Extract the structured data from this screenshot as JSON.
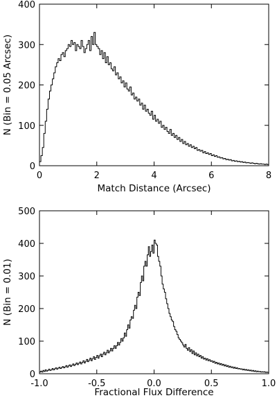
{
  "chart_data": [
    {
      "type": "step-histogram",
      "xlabel": "Match Distance (Arcsec)",
      "ylabel": "N (Bin = 0.05 Arcsec)",
      "xlim": [
        0,
        8
      ],
      "ylim": [
        0,
        400
      ],
      "xticks": [
        0,
        2,
        4,
        6,
        8
      ],
      "yticks": [
        0,
        100,
        200,
        300,
        400
      ],
      "bin_width": 0.05,
      "x": [
        0.0,
        0.05,
        0.1,
        0.15,
        0.2,
        0.25,
        0.3,
        0.35,
        0.4,
        0.45,
        0.5,
        0.55,
        0.6,
        0.65,
        0.7,
        0.75,
        0.8,
        0.85,
        0.9,
        0.95,
        1.0,
        1.05,
        1.1,
        1.15,
        1.2,
        1.25,
        1.3,
        1.35,
        1.4,
        1.45,
        1.5,
        1.55,
        1.6,
        1.65,
        1.7,
        1.75,
        1.8,
        1.85,
        1.9,
        1.95,
        2.0,
        2.05,
        2.1,
        2.15,
        2.2,
        2.25,
        2.3,
        2.35,
        2.4,
        2.45,
        2.5,
        2.55,
        2.6,
        2.65,
        2.7,
        2.75,
        2.8,
        2.85,
        2.9,
        2.95,
        3.0,
        3.05,
        3.1,
        3.15,
        3.2,
        3.25,
        3.3,
        3.35,
        3.4,
        3.45,
        3.5,
        3.55,
        3.6,
        3.65,
        3.7,
        3.75,
        3.8,
        3.85,
        3.9,
        3.95,
        4.0,
        4.05,
        4.1,
        4.15,
        4.2,
        4.25,
        4.3,
        4.35,
        4.4,
        4.45,
        4.5,
        4.55,
        4.6,
        4.65,
        4.7,
        4.75,
        4.8,
        4.85,
        4.9,
        4.95,
        5.0,
        5.05,
        5.1,
        5.15,
        5.2,
        5.25,
        5.3,
        5.35,
        5.4,
        5.45,
        5.5,
        5.55,
        5.6,
        5.65,
        5.7,
        5.75,
        5.8,
        5.85,
        5.9,
        5.95,
        6.0,
        6.05,
        6.1,
        6.15,
        6.2,
        6.25,
        6.3,
        6.35,
        6.4,
        6.45,
        6.5,
        6.55,
        6.6,
        6.65,
        6.7,
        6.75,
        6.8,
        6.85,
        6.9,
        6.95,
        7.0,
        7.05,
        7.1,
        7.15,
        7.2,
        7.25,
        7.3,
        7.35,
        7.4,
        7.45,
        7.5,
        7.55,
        7.6,
        7.65,
        7.7,
        7.75,
        7.8,
        7.85,
        7.9,
        7.95
      ],
      "values": [
        10,
        25,
        45,
        80,
        110,
        140,
        165,
        185,
        200,
        215,
        230,
        245,
        255,
        265,
        260,
        275,
        280,
        270,
        285,
        290,
        300,
        295,
        310,
        300,
        305,
        285,
        300,
        295,
        290,
        310,
        295,
        280,
        290,
        300,
        310,
        285,
        320,
        300,
        330,
        300,
        295,
        290,
        275,
        285,
        265,
        280,
        255,
        270,
        250,
        255,
        240,
        235,
        245,
        225,
        230,
        215,
        220,
        205,
        210,
        195,
        205,
        190,
        185,
        195,
        175,
        180,
        165,
        170,
        160,
        165,
        150,
        155,
        140,
        150,
        135,
        140,
        130,
        125,
        135,
        115,
        125,
        110,
        115,
        105,
        110,
        95,
        100,
        90,
        95,
        85,
        80,
        90,
        75,
        80,
        70,
        75,
        65,
        70,
        60,
        65,
        55,
        60,
        52,
        55,
        48,
        52,
        45,
        48,
        42,
        45,
        38,
        40,
        36,
        38,
        32,
        35,
        30,
        32,
        28,
        30,
        25,
        27,
        23,
        25,
        21,
        22,
        19,
        20,
        17,
        18,
        15,
        16,
        14,
        15,
        12,
        13,
        11,
        12,
        10,
        11,
        9,
        10,
        8,
        9,
        7,
        8,
        7,
        6,
        7,
        6,
        5,
        6,
        5,
        4,
        5,
        4,
        4,
        3,
        4,
        3
      ]
    },
    {
      "type": "step-histogram",
      "xlabel": "Fractional Flux Difference",
      "ylabel": "N (Bin = 0.01)",
      "xlim": [
        -1.0,
        1.0
      ],
      "ylim": [
        0,
        500
      ],
      "xticks": [
        -1.0,
        -0.5,
        0.0,
        0.5,
        1.0
      ],
      "yticks": [
        0,
        100,
        200,
        300,
        400,
        500
      ],
      "bin_width": 0.01,
      "x": [
        -1.0,
        -0.99,
        -0.98,
        -0.97,
        -0.96,
        -0.95,
        -0.94,
        -0.93,
        -0.92,
        -0.91,
        -0.9,
        -0.89,
        -0.88,
        -0.87,
        -0.86,
        -0.85,
        -0.84,
        -0.83,
        -0.82,
        -0.81,
        -0.8,
        -0.79,
        -0.78,
        -0.77,
        -0.76,
        -0.75,
        -0.74,
        -0.73,
        -0.72,
        -0.71,
        -0.7,
        -0.69,
        -0.68,
        -0.67,
        -0.66,
        -0.65,
        -0.64,
        -0.63,
        -0.62,
        -0.61,
        -0.6,
        -0.59,
        -0.58,
        -0.57,
        -0.56,
        -0.55,
        -0.54,
        -0.53,
        -0.52,
        -0.51,
        -0.5,
        -0.49,
        -0.48,
        -0.47,
        -0.46,
        -0.45,
        -0.44,
        -0.43,
        -0.42,
        -0.41,
        -0.4,
        -0.39,
        -0.38,
        -0.37,
        -0.36,
        -0.35,
        -0.34,
        -0.33,
        -0.32,
        -0.31,
        -0.3,
        -0.29,
        -0.28,
        -0.27,
        -0.26,
        -0.25,
        -0.24,
        -0.23,
        -0.22,
        -0.21,
        -0.2,
        -0.19,
        -0.18,
        -0.17,
        -0.16,
        -0.15,
        -0.14,
        -0.13,
        -0.12,
        -0.11,
        -0.1,
        -0.09,
        -0.08,
        -0.07,
        -0.06,
        -0.05,
        -0.04,
        -0.03,
        -0.02,
        -0.01,
        0.0,
        0.01,
        0.02,
        0.03,
        0.04,
        0.05,
        0.06,
        0.07,
        0.08,
        0.09,
        0.1,
        0.11,
        0.12,
        0.13,
        0.14,
        0.15,
        0.16,
        0.17,
        0.18,
        0.19,
        0.2,
        0.21,
        0.22,
        0.23,
        0.24,
        0.25,
        0.26,
        0.27,
        0.28,
        0.29,
        0.3,
        0.31,
        0.32,
        0.33,
        0.34,
        0.35,
        0.36,
        0.37,
        0.38,
        0.39,
        0.4,
        0.41,
        0.42,
        0.43,
        0.44,
        0.45,
        0.46,
        0.47,
        0.48,
        0.49,
        0.5,
        0.51,
        0.52,
        0.53,
        0.54,
        0.55,
        0.56,
        0.57,
        0.58,
        0.59,
        0.6,
        0.61,
        0.62,
        0.63,
        0.64,
        0.65,
        0.66,
        0.67,
        0.68,
        0.69,
        0.7,
        0.71,
        0.72,
        0.73,
        0.74,
        0.75,
        0.76,
        0.77,
        0.78,
        0.79,
        0.8,
        0.81,
        0.82,
        0.83,
        0.84,
        0.85,
        0.86,
        0.87,
        0.88,
        0.89,
        0.9,
        0.91,
        0.92,
        0.93,
        0.94,
        0.95,
        0.96,
        0.97,
        0.98,
        0.99
      ],
      "values": [
        5,
        8,
        5,
        10,
        7,
        12,
        8,
        10,
        14,
        10,
        12,
        16,
        12,
        15,
        18,
        14,
        17,
        20,
        16,
        19,
        22,
        18,
        21,
        25,
        20,
        24,
        27,
        22,
        26,
        30,
        25,
        29,
        33,
        28,
        32,
        36,
        30,
        35,
        40,
        33,
        38,
        44,
        37,
        42,
        48,
        40,
        46,
        52,
        44,
        50,
        56,
        48,
        55,
        60,
        52,
        60,
        66,
        58,
        64,
        72,
        64,
        70,
        78,
        70,
        78,
        86,
        78,
        86,
        96,
        88,
        96,
        108,
        100,
        110,
        125,
        115,
        135,
        150,
        140,
        165,
        175,
        170,
        195,
        210,
        200,
        235,
        250,
        240,
        280,
        300,
        285,
        330,
        345,
        330,
        365,
        390,
        360,
        375,
        395,
        370,
        410,
        400,
        395,
        360,
        345,
        330,
        300,
        275,
        260,
        250,
        230,
        215,
        200,
        185,
        175,
        165,
        160,
        145,
        135,
        130,
        120,
        110,
        105,
        100,
        95,
        88,
        82,
        90,
        78,
        72,
        80,
        68,
        74,
        62,
        70,
        58,
        64,
        55,
        60,
        52,
        56,
        48,
        52,
        45,
        48,
        42,
        46,
        40,
        43,
        38,
        40,
        35,
        38,
        32,
        35,
        30,
        33,
        28,
        31,
        26,
        29,
        24,
        27,
        22,
        25,
        20,
        23,
        19,
        21,
        17,
        20,
        16,
        18,
        15,
        16,
        14,
        15,
        12,
        14,
        11,
        13,
        10,
        12,
        9,
        11,
        8,
        10,
        7,
        9,
        6,
        8,
        6,
        7,
        5,
        6,
        5,
        6,
        4,
        5,
        4
      ]
    }
  ]
}
